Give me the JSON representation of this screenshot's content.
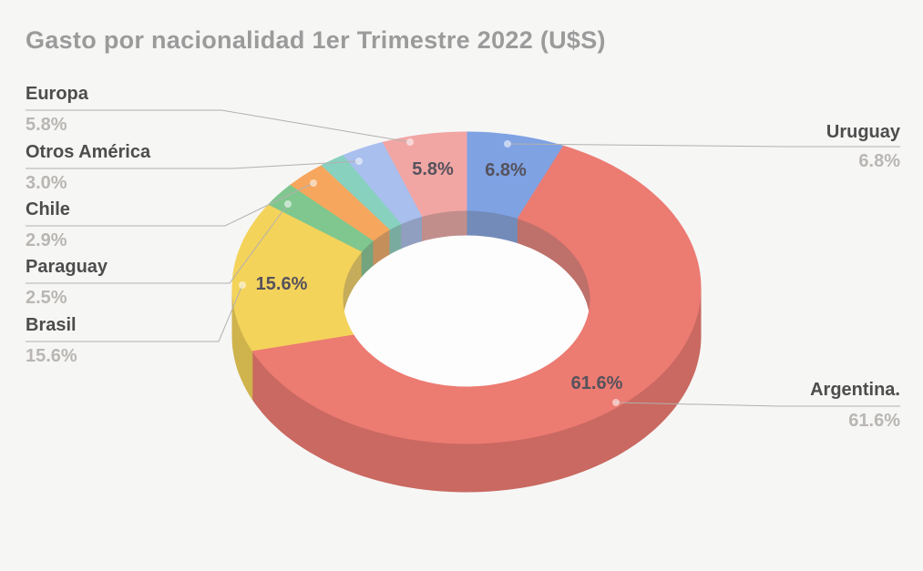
{
  "title": "Gasto por nacionalidad 1er Trimestre 2022 (U$S)",
  "chart_data": {
    "type": "pie",
    "subtype": "3d-donut",
    "title": "Gasto por nacionalidad 1er Trimestre 2022 (U$S)",
    "currency_unit": "U$S",
    "period": "1er Trimestre 2022",
    "start_angle_deg": 0,
    "direction": "clockwise",
    "legend_position": "callout-labels",
    "slices": [
      {
        "label": "Uruguay",
        "value": 6.8,
        "pct_text": "6.8%",
        "color": "#7fa2e3",
        "show_pct_on_slice": true
      },
      {
        "label": "Argentina.",
        "value": 61.6,
        "pct_text": "61.6%",
        "color": "#ec7b72",
        "show_pct_on_slice": true
      },
      {
        "label": "Brasil",
        "value": 15.6,
        "pct_text": "15.6%",
        "color": "#f4d35b",
        "show_pct_on_slice": true
      },
      {
        "label": "Paraguay",
        "value": 2.5,
        "pct_text": "2.5%",
        "color": "#7fc78e",
        "show_pct_on_slice": false
      },
      {
        "label": "Chile",
        "value": 2.9,
        "pct_text": "2.9%",
        "color": "#f6a75d",
        "show_pct_on_slice": false
      },
      {
        "label": "",
        "value": 1.8,
        "pct_text": "",
        "color": "#88d1bf",
        "show_pct_on_slice": false
      },
      {
        "label": "Otros América",
        "value": 3.0,
        "pct_text": "3.0%",
        "color": "#a9bfee",
        "show_pct_on_slice": false
      },
      {
        "label": "Europa",
        "value": 5.8,
        "pct_text": "5.8%",
        "color": "#f1a6a4",
        "show_pct_on_slice": true
      }
    ]
  }
}
